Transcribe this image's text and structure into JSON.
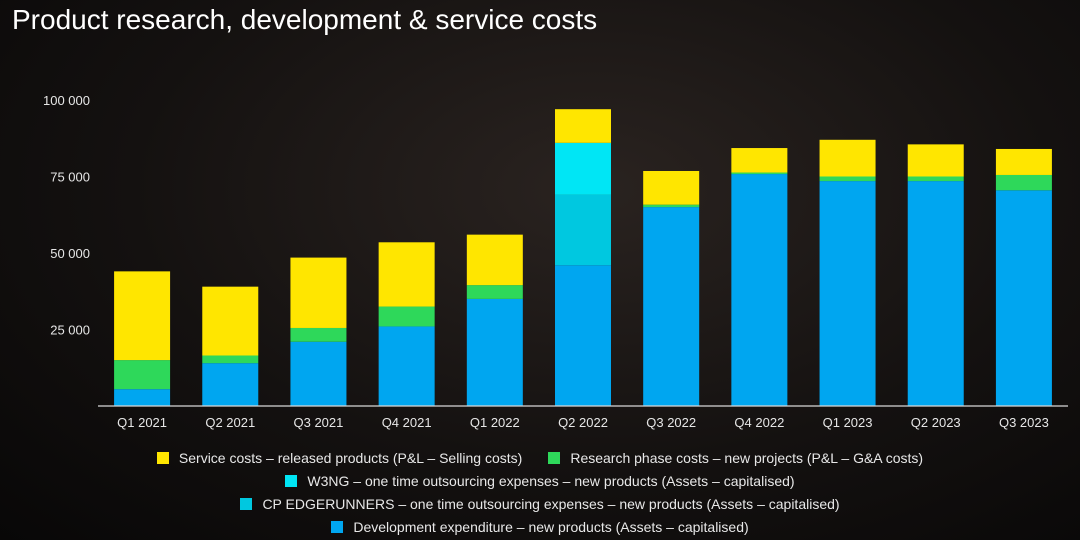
{
  "title": "Product research, development & service costs",
  "chart_data": {
    "type": "bar",
    "stacked": true,
    "title": "Product research, development & service costs",
    "xlabel": "",
    "ylabel": "",
    "ylim": [
      0,
      100000
    ],
    "yticks": [
      25000,
      50000,
      75000,
      100000
    ],
    "ytick_labels": [
      "25 000",
      "50 000",
      "75 000",
      "100 000"
    ],
    "categories": [
      "Q1 2021",
      "Q2 2021",
      "Q3 2021",
      "Q4 2021",
      "Q1 2022",
      "Q2 2022",
      "Q3 2022",
      "Q4 2022",
      "Q1 2023",
      "Q2 2023",
      "Q3 2023"
    ],
    "series": [
      {
        "name": "Development expenditure – new products (Assets – capitalised)",
        "color": "#00a6f0",
        "values": [
          5500,
          14000,
          21000,
          26000,
          35000,
          46000,
          65000,
          75800,
          73500,
          73500,
          70500
        ]
      },
      {
        "name": "CP EDGERUNNERS – one time outsourcing expenses – new products (Assets – capitalised)",
        "color": "#00c8e0",
        "values": [
          0,
          0,
          0,
          0,
          0,
          23000,
          0,
          0,
          0,
          0,
          0
        ]
      },
      {
        "name": "W3NG – one time outsourcing expenses – new products (Assets – capitalised)",
        "color": "#00e6f5",
        "values": [
          0,
          0,
          0,
          0,
          0,
          17000,
          0,
          0,
          0,
          0,
          0
        ]
      },
      {
        "name": "Research phase costs – new projects (P&L – G&A costs)",
        "color": "#2ed85a",
        "values": [
          9500,
          2500,
          4500,
          6500,
          4500,
          0,
          800,
          500,
          1500,
          1500,
          5000
        ]
      },
      {
        "name": "Service costs – released products (P&L – Selling costs)",
        "color": "#ffe600",
        "values": [
          29000,
          22500,
          23000,
          21000,
          16500,
          11000,
          11000,
          8000,
          12000,
          10500,
          8500
        ]
      }
    ],
    "legend": {
      "placement": "bottom",
      "rows": [
        [
          {
            "label": "Service costs – released products (P&L – Selling costs)",
            "color": "#ffe600"
          },
          {
            "label": "Research phase costs – new projects (P&L – G&A costs)",
            "color": "#2ed85a"
          }
        ],
        [
          {
            "label": "W3NG – one time outsourcing expenses – new products (Assets – capitalised)",
            "color": "#00e6f5"
          }
        ],
        [
          {
            "label": "CP EDGERUNNERS – one time outsourcing expenses – new products (Assets – capitalised)",
            "color": "#00c8e0"
          }
        ],
        [
          {
            "label": "Development expenditure – new products (Assets – capitalised)",
            "color": "#00a6f0"
          }
        ]
      ]
    }
  }
}
